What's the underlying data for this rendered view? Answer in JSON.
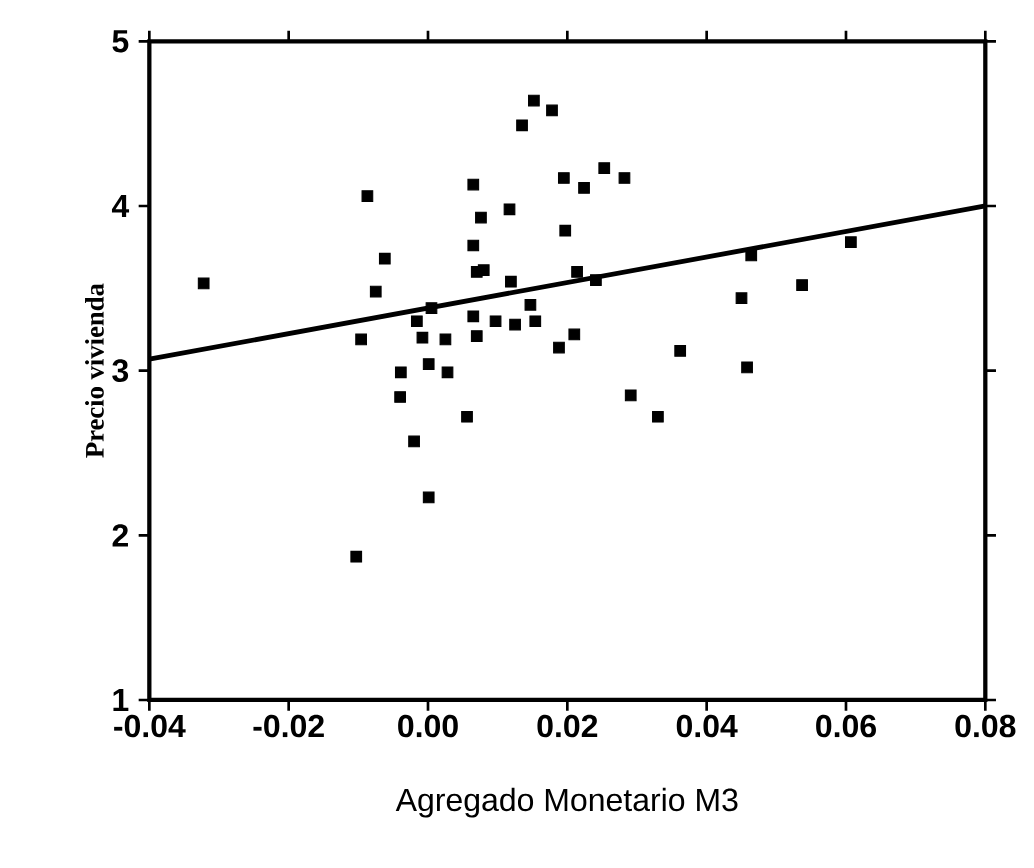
{
  "chart_data": {
    "type": "scatter",
    "xlabel": "Agregado Monetario M3",
    "ylabel": "Precio vivienda",
    "xlim": [
      -0.04,
      0.08
    ],
    "ylim": [
      1,
      5
    ],
    "xticks": [
      {
        "value": -0.04,
        "label": "-0.04"
      },
      {
        "value": -0.02,
        "label": "-0.02"
      },
      {
        "value": 0,
        "label": "0.00"
      },
      {
        "value": 0.02,
        "label": "0.02"
      },
      {
        "value": 0.04,
        "label": "0.04"
      },
      {
        "value": 0.06,
        "label": "0.06"
      },
      {
        "value": 0.08,
        "label": "0.08"
      }
    ],
    "yticks": [
      1,
      2,
      3,
      4,
      5
    ],
    "marker": "square",
    "grid": false,
    "series": [
      {
        "color": "#000000",
        "x": [
          -0.0322,
          -0.0087,
          -0.0062,
          -0.0075,
          -0.0096,
          -0.0103,
          -0.0039,
          -0.004,
          -0.002,
          0.0001,
          -0.0016,
          -0.0008,
          0.0005,
          0.0001,
          0.0028,
          0.0025,
          0.0056,
          0.0065,
          0.0076,
          0.0065,
          0.007,
          0.008,
          0.0065,
          0.007,
          0.0097,
          0.0119,
          0.0117,
          0.0135,
          0.0152,
          0.0178,
          0.0125,
          0.0147,
          0.0154,
          0.0188,
          0.0195,
          0.0224,
          0.0253,
          0.0282,
          0.0197,
          0.0214,
          0.0241,
          0.021,
          0.045,
          0.0464,
          0.0458,
          0.0537,
          0.0362,
          0.0291,
          0.033,
          0.0607
        ],
        "values": [
          3.53,
          4.06,
          3.68,
          3.48,
          3.19,
          1.87,
          2.99,
          2.84,
          2.57,
          2.23,
          3.3,
          3.2,
          3.38,
          3.04,
          2.99,
          3.19,
          2.72,
          4.13,
          3.93,
          3.76,
          3.6,
          3.61,
          3.33,
          3.21,
          3.3,
          3.54,
          3.98,
          4.49,
          4.64,
          4.58,
          3.28,
          3.4,
          3.3,
          3.14,
          4.17,
          4.11,
          4.23,
          4.17,
          3.85,
          3.6,
          3.55,
          3.22,
          3.44,
          3.7,
          3.02,
          3.52,
          3.12,
          2.85,
          2.72,
          3.78
        ]
      },
      {
        "type": "line",
        "color": "#000000",
        "marker": "none",
        "line_style": "solid",
        "x": [
          -0.04,
          0.08
        ],
        "values": [
          3.07,
          4.0
        ]
      }
    ]
  }
}
